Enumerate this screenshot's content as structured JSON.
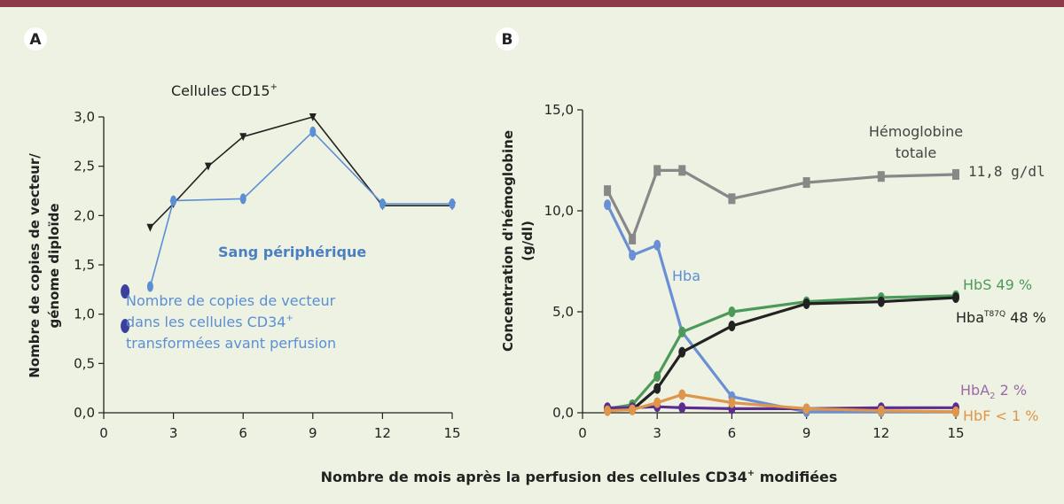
{
  "figure": {
    "xlabel": "Nombre de mois après la perfusion des cellules CD34⁺ modifiées",
    "xlabel_main": "Nombre de mois après la perfusion des cellules CD34",
    "xlabel_sup": "+",
    "xlabel_tail": " modifiées"
  },
  "chart_data": [
    {
      "panel": "A",
      "type": "line",
      "title": "Cellules CD15⁺",
      "title_main": "Cellules CD15",
      "title_sup": "+",
      "ylabel_line1": "Nombre de copies de vecteur/",
      "ylabel_line2": "génome diploïde",
      "xlim": [
        0,
        15
      ],
      "ylim": [
        0,
        3
      ],
      "xticks": [
        "0",
        "3",
        "6",
        "9",
        "12",
        "15"
      ],
      "xtick_values": [
        0,
        3,
        6,
        9,
        12,
        15
      ],
      "yticks": [
        "0,0",
        "0,5",
        "1,0",
        "1,5",
        "2,0",
        "2,5",
        "3,0"
      ],
      "ytick_values": [
        0,
        0.5,
        1,
        1.5,
        2,
        2.5,
        3
      ],
      "series": [
        {
          "name": "Cellules CD15+",
          "color": "#222222",
          "marker": "triangle",
          "x": [
            2,
            3,
            4.5,
            6,
            9,
            12,
            15
          ],
          "y": [
            1.88,
            2.12,
            2.5,
            2.8,
            3.0,
            2.1,
            2.1
          ]
        },
        {
          "name": "Sang périphérique",
          "color": "#5b8fd4",
          "marker": "circle",
          "x": [
            2,
            3,
            6,
            9,
            12,
            15
          ],
          "y": [
            1.28,
            2.15,
            2.17,
            2.85,
            2.12,
            2.12
          ]
        }
      ],
      "annotations": {
        "sang": "Sang périphérique",
        "note_line1": "Nombre de copies de vecteur",
        "note_line2": "dans les cellules CD34⁺",
        "note_line2_main": "dans les cellules CD34",
        "note_line2_sup": "+",
        "note_line3": "transformées avant perfusion",
        "note_points": [
          {
            "x": 0.5,
            "y": 1.23,
            "color": "#3b3f9e"
          },
          {
            "x": 0.5,
            "y": 0.88,
            "color": "#3b3f9e"
          }
        ]
      }
    },
    {
      "panel": "B",
      "type": "line",
      "ylabel_line1": "Concentration d'hémoglobine",
      "ylabel_line2": "(g/dl)",
      "xlim": [
        0,
        15
      ],
      "ylim": [
        0,
        15
      ],
      "xticks": [
        "0",
        "3",
        "6",
        "9",
        "12",
        "15"
      ],
      "xtick_values": [
        0,
        3,
        6,
        9,
        12,
        15
      ],
      "yticks": [
        "0,0",
        "5,0",
        "10,0",
        "15,0"
      ],
      "ytick_values": [
        0,
        5,
        10,
        15
      ],
      "series": [
        {
          "name": "Hémoglobine totale",
          "label": "11,8 g/dl",
          "color": "#888888",
          "marker": "square",
          "x": [
            1,
            2,
            3,
            4,
            6,
            9,
            12,
            15
          ],
          "y": [
            11.0,
            8.6,
            12.0,
            12.0,
            10.6,
            11.4,
            11.7,
            11.8
          ]
        },
        {
          "name": "Hba",
          "color": "#6b8fd4",
          "marker": "circle",
          "x": [
            1,
            2,
            3,
            4,
            6,
            9,
            12,
            15
          ],
          "y": [
            10.3,
            7.8,
            8.3,
            4.0,
            0.8,
            0.05,
            0.05,
            0.05
          ]
        },
        {
          "name": "HbS 49 %",
          "color": "#4c9a5a",
          "marker": "circle",
          "x": [
            1,
            2,
            3,
            4,
            6,
            9,
            12,
            15
          ],
          "y": [
            0.2,
            0.4,
            1.8,
            4.0,
            5.0,
            5.5,
            5.7,
            5.8
          ]
        },
        {
          "name": "HbaT87Q 48 %",
          "color": "#222222",
          "marker": "circle",
          "x": [
            1,
            2,
            3,
            4,
            6,
            9,
            12,
            15
          ],
          "y": [
            0.15,
            0.15,
            1.2,
            3.0,
            4.3,
            5.4,
            5.5,
            5.7
          ]
        },
        {
          "name": "HbA2 2 %",
          "color": "#5b2d8e",
          "marker": "circle",
          "x": [
            1,
            2,
            3,
            4,
            6,
            9,
            12,
            15
          ],
          "y": [
            0.25,
            0.25,
            0.3,
            0.25,
            0.2,
            0.2,
            0.25,
            0.25
          ]
        },
        {
          "name": "HbF < 1 %",
          "color": "#e0964a",
          "marker": "circle",
          "x": [
            1,
            2,
            3,
            4,
            6,
            9,
            12,
            15
          ],
          "y": [
            0.1,
            0.15,
            0.5,
            0.9,
            0.5,
            0.2,
            0.1,
            0.05
          ]
        }
      ],
      "labels": {
        "total_line1": "Hémoglobine",
        "total_line2": "totale",
        "total_value": "11,8 g/dl",
        "hba": "Hba",
        "hbs": "HbS 49 %",
        "t87q_main": "Hba",
        "t87q_sup": "T87Q",
        "t87q_tail": " 48 %",
        "hba2_main": "HbA",
        "hba2_sub": "2",
        "hba2_tail": " 2 %",
        "hbf": "HbF < 1 %"
      }
    }
  ]
}
